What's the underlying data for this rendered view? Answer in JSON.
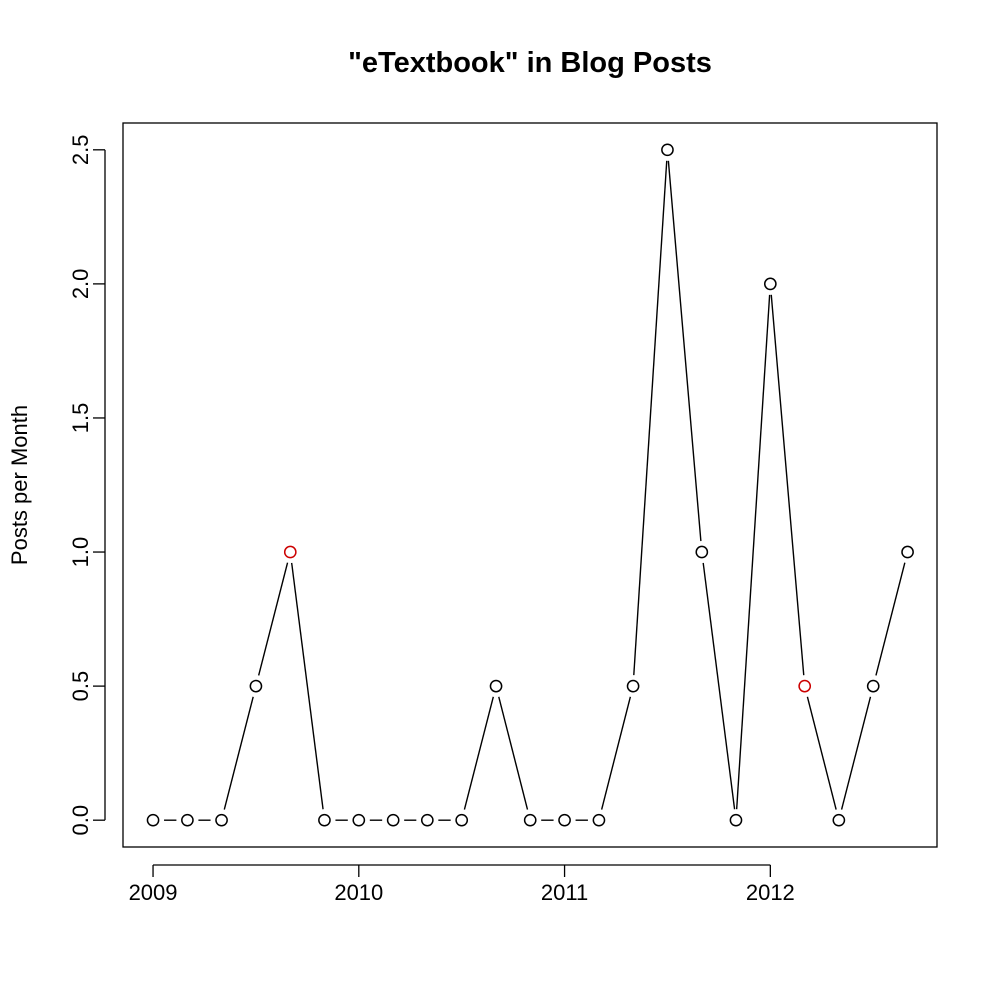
{
  "chart_data": {
    "type": "line",
    "title": "\"eTextbook\" in Blog Posts",
    "xlabel": "",
    "ylabel": "Posts per Month",
    "xlim": [
      2008.854,
      2012.81
    ],
    "ylim": [
      -0.1,
      2.6
    ],
    "x_ticks": [
      2009,
      2010,
      2011,
      2012
    ],
    "y_ticks": [
      0.0,
      0.5,
      1.0,
      1.5,
      2.0,
      2.5
    ],
    "y_tick_labels": [
      "0.0",
      "0.5",
      "1.0",
      "1.5",
      "2.0",
      "2.5"
    ],
    "x_tick_labels": [
      "2009",
      "2010",
      "2011",
      "2012"
    ],
    "grid": false,
    "legend": "none",
    "line_color": "#000000",
    "point_color": "#000000",
    "highlight_color": "#cc0000",
    "points": [
      {
        "x": 2009.0,
        "y": 0
      },
      {
        "x": 2009.167,
        "y": 0
      },
      {
        "x": 2009.333,
        "y": 0
      },
      {
        "x": 2009.5,
        "y": 0.5
      },
      {
        "x": 2009.667,
        "y": 1,
        "highlight": true
      },
      {
        "x": 2009.833,
        "y": 0
      },
      {
        "x": 2010.0,
        "y": 0
      },
      {
        "x": 2010.167,
        "y": 0
      },
      {
        "x": 2010.333,
        "y": 0
      },
      {
        "x": 2010.5,
        "y": 0
      },
      {
        "x": 2010.667,
        "y": 0.5
      },
      {
        "x": 2010.833,
        "y": 0
      },
      {
        "x": 2011.0,
        "y": 0
      },
      {
        "x": 2011.167,
        "y": 0
      },
      {
        "x": 2011.333,
        "y": 0.5
      },
      {
        "x": 2011.5,
        "y": 2.5
      },
      {
        "x": 2011.667,
        "y": 1
      },
      {
        "x": 2011.833,
        "y": 0
      },
      {
        "x": 2012.0,
        "y": 2
      },
      {
        "x": 2012.167,
        "y": 0.5,
        "highlight": true
      },
      {
        "x": 2012.333,
        "y": 0
      },
      {
        "x": 2012.5,
        "y": 0.5
      },
      {
        "x": 2012.667,
        "y": 1
      }
    ]
  }
}
